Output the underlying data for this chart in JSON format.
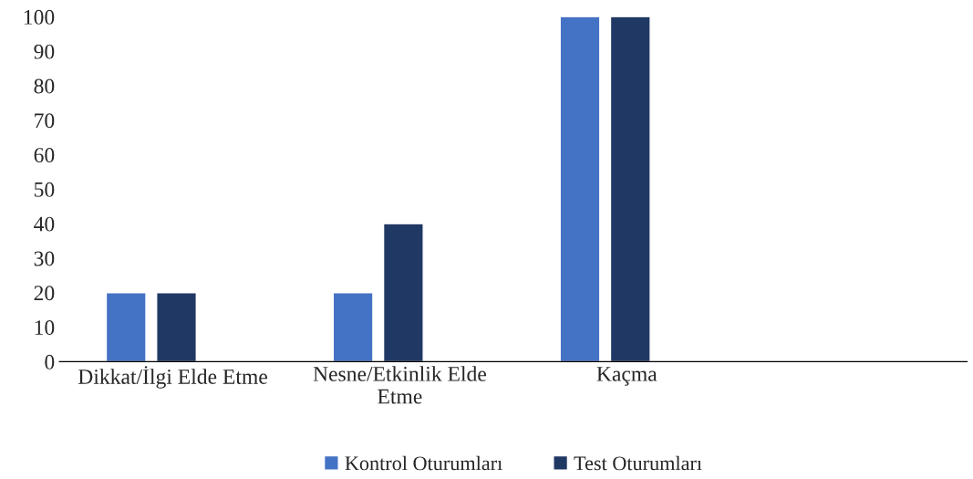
{
  "chart_data": {
    "type": "bar",
    "categories": [
      "Dikkat/İlgi Elde Etme",
      "Nesne/Etkinlik Elde\nEtme",
      "Kaçma",
      null
    ],
    "series": [
      {
        "name": "Kontrol Oturumları",
        "color": "#4472c4",
        "values": [
          20,
          20,
          100,
          null
        ]
      },
      {
        "name": "Test Oturumları",
        "color": "#203864",
        "values": [
          20,
          40,
          100,
          null
        ]
      }
    ],
    "ylim": [
      0,
      100
    ],
    "yticks": [
      0,
      10,
      20,
      30,
      40,
      50,
      60,
      70,
      80,
      90,
      100
    ],
    "grid": false,
    "legend": "bottom"
  }
}
